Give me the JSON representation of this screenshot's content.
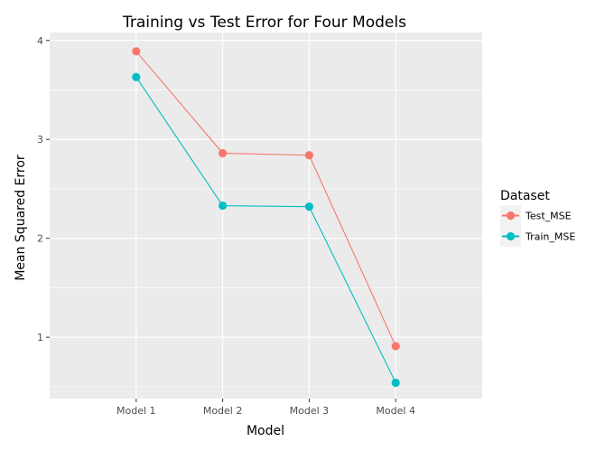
{
  "chart_data": {
    "type": "line",
    "title": "Training vs Test Error for Four Models",
    "xlabel": "Model",
    "ylabel": "Mean Squared Error",
    "categories": [
      "Model 1",
      "Model 2",
      "Model 3",
      "Model 4"
    ],
    "ylim": [
      0.38,
      4.08
    ],
    "yticks": [
      1,
      2,
      3,
      4
    ],
    "yticks_labels": [
      "1",
      "2",
      "3",
      "4"
    ],
    "grid": true,
    "legend": {
      "title": "Dataset",
      "position": "right"
    },
    "series": [
      {
        "name": "Test_MSE",
        "color": "#f8766d",
        "values": [
          3.89,
          2.86,
          2.84,
          0.91
        ]
      },
      {
        "name": "Train_MSE",
        "color": "#00bfc4",
        "values": [
          3.63,
          2.33,
          2.32,
          0.54
        ]
      }
    ]
  }
}
